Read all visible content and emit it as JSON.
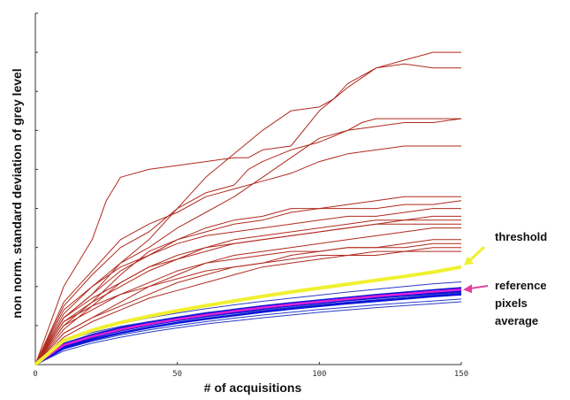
{
  "chart_data": {
    "type": "line",
    "title": "",
    "xlabel": "# of acquisitions",
    "ylabel": "non norm. standard deviation of grey level",
    "xlim": [
      0,
      150
    ],
    "ylim": [
      0,
      9
    ],
    "grid": false,
    "x_ticks": [
      0,
      50,
      100,
      150
    ],
    "x_tick_labels": [
      "0",
      "50",
      "100",
      "150"
    ],
    "y_ticks": [
      0,
      1,
      2,
      3,
      4,
      5,
      6,
      7,
      8,
      9
    ],
    "y_tick_labels": [
      "",
      "",
      "",
      "",
      "",
      "",
      "",
      "",
      "",
      ""
    ],
    "colors": {
      "outlier": "#b02a1e",
      "reference": "#0a14d8",
      "reference_thin": "#2a3cc8",
      "average": "#e020d8",
      "threshold": "#f0f030",
      "threshold_arrow": "#f0f030",
      "average_arrow": "#e040a0"
    },
    "annotations": [
      {
        "text_lines": [
          "threshold"
        ],
        "target_series": "threshold"
      },
      {
        "text_lines": [
          "reference",
          "pixels",
          "average"
        ],
        "target_series": "average"
      }
    ],
    "series": [
      {
        "group": "outlier",
        "x": [
          0,
          10,
          20,
          25,
          30,
          40,
          50,
          60,
          70,
          75,
          80,
          90,
          100,
          110,
          120,
          130,
          140,
          150
        ],
        "y": [
          0,
          2.0,
          3.2,
          4.2,
          4.8,
          5.0,
          5.1,
          5.2,
          5.3,
          5.3,
          5.5,
          5.6,
          6.5,
          7.1,
          7.6,
          7.8,
          8.0,
          8.0
        ]
      },
      {
        "group": "outlier",
        "x": [
          0,
          10,
          20,
          30,
          40,
          50,
          60,
          70,
          80,
          90,
          100,
          105,
          110,
          120,
          130,
          140,
          150
        ],
        "y": [
          0,
          1.2,
          1.8,
          2.6,
          3.2,
          4.0,
          4.8,
          5.4,
          6.0,
          6.5,
          6.6,
          6.8,
          7.2,
          7.6,
          7.7,
          7.6,
          7.6
        ]
      },
      {
        "group": "outlier",
        "x": [
          0,
          10,
          20,
          30,
          40,
          50,
          60,
          70,
          75,
          80,
          90,
          100,
          110,
          115,
          120,
          130,
          140,
          150
        ],
        "y": [
          0,
          1.5,
          2.3,
          3.0,
          3.4,
          4.0,
          4.4,
          4.6,
          5.0,
          5.2,
          5.5,
          5.7,
          6.0,
          6.2,
          6.3,
          6.3,
          6.3,
          6.3
        ]
      },
      {
        "group": "outlier",
        "x": [
          0,
          10,
          20,
          30,
          40,
          50,
          60,
          70,
          80,
          90,
          100,
          110,
          120,
          130,
          140,
          150
        ],
        "y": [
          0,
          1.3,
          2.0,
          2.6,
          3.0,
          3.5,
          3.9,
          4.3,
          4.8,
          5.3,
          5.8,
          6.0,
          6.1,
          6.2,
          6.2,
          6.3
        ]
      },
      {
        "group": "outlier",
        "x": [
          0,
          10,
          20,
          30,
          40,
          50,
          60,
          70,
          80,
          90,
          100,
          110,
          120,
          130,
          140,
          150
        ],
        "y": [
          0,
          1.6,
          2.4,
          3.2,
          3.6,
          3.9,
          4.3,
          4.5,
          4.7,
          4.9,
          5.2,
          5.4,
          5.5,
          5.6,
          5.6,
          5.6
        ]
      },
      {
        "group": "outlier",
        "x": [
          0,
          10,
          20,
          30,
          40,
          50,
          60,
          70,
          80,
          90,
          100,
          110,
          120,
          130,
          140,
          150
        ],
        "y": [
          0,
          1.2,
          1.8,
          2.4,
          2.8,
          3.2,
          3.5,
          3.7,
          3.8,
          4.0,
          4.0,
          4.1,
          4.2,
          4.3,
          4.3,
          4.3
        ]
      },
      {
        "group": "outlier",
        "x": [
          0,
          10,
          20,
          30,
          40,
          50,
          60,
          70,
          80,
          90,
          100,
          110,
          120,
          130,
          140,
          150
        ],
        "y": [
          0,
          1.0,
          1.6,
          2.3,
          2.9,
          3.2,
          3.4,
          3.6,
          3.7,
          3.9,
          4.0,
          4.0,
          4.0,
          4.1,
          4.1,
          4.2
        ]
      },
      {
        "group": "outlier",
        "x": [
          0,
          10,
          20,
          30,
          40,
          50,
          60,
          70,
          80,
          90,
          100,
          110,
          120,
          130,
          140,
          150
        ],
        "y": [
          0,
          1.4,
          2.0,
          2.5,
          2.8,
          3.1,
          3.3,
          3.4,
          3.5,
          3.6,
          3.7,
          3.8,
          3.8,
          3.9,
          4.0,
          4.0
        ]
      },
      {
        "group": "outlier",
        "x": [
          0,
          10,
          20,
          30,
          40,
          50,
          60,
          70,
          80,
          90,
          100,
          110,
          120,
          130,
          140,
          150
        ],
        "y": [
          0,
          1.1,
          1.6,
          2.0,
          2.4,
          2.7,
          3.0,
          3.2,
          3.3,
          3.4,
          3.5,
          3.6,
          3.7,
          3.7,
          3.8,
          3.8
        ]
      },
      {
        "group": "outlier",
        "x": [
          0,
          10,
          20,
          30,
          40,
          50,
          60,
          70,
          80,
          90,
          100,
          110,
          120,
          130,
          140,
          150
        ],
        "y": [
          0,
          0.9,
          1.5,
          2.1,
          2.5,
          2.8,
          3.0,
          3.1,
          3.2,
          3.3,
          3.4,
          3.5,
          3.6,
          3.7,
          3.7,
          3.7
        ]
      },
      {
        "group": "outlier",
        "x": [
          0,
          10,
          20,
          30,
          40,
          50,
          60,
          70,
          80,
          90,
          100,
          110,
          120,
          130,
          140,
          150
        ],
        "y": [
          0,
          1.2,
          1.7,
          2.1,
          2.5,
          2.7,
          2.9,
          3.1,
          3.2,
          3.3,
          3.4,
          3.5,
          3.6,
          3.6,
          3.6,
          3.6
        ]
      },
      {
        "group": "outlier",
        "x": [
          0,
          10,
          20,
          30,
          40,
          50,
          60,
          70,
          80,
          90,
          100,
          110,
          120,
          130,
          140,
          150
        ],
        "y": [
          0,
          0.8,
          1.2,
          1.6,
          2.0,
          2.3,
          2.6,
          2.8,
          2.9,
          3.0,
          3.1,
          3.2,
          3.3,
          3.4,
          3.5,
          3.5
        ]
      },
      {
        "group": "outlier",
        "x": [
          0,
          10,
          20,
          30,
          40,
          50,
          60,
          70,
          80,
          90,
          100,
          110,
          120,
          130,
          140,
          150
        ],
        "y": [
          0,
          1.0,
          1.4,
          1.8,
          2.1,
          2.4,
          2.6,
          2.7,
          2.8,
          2.9,
          2.9,
          3.0,
          3.0,
          3.1,
          3.2,
          3.2
        ]
      },
      {
        "group": "outlier",
        "x": [
          0,
          10,
          20,
          30,
          40,
          50,
          60,
          70,
          80,
          90,
          100,
          110,
          120,
          130,
          140,
          150
        ],
        "y": [
          0,
          0.8,
          1.2,
          1.5,
          1.8,
          2.1,
          2.3,
          2.5,
          2.6,
          2.8,
          2.9,
          3.0,
          3.0,
          3.0,
          3.1,
          3.1
        ]
      },
      {
        "group": "outlier",
        "x": [
          0,
          10,
          20,
          30,
          40,
          50,
          60,
          70,
          80,
          90,
          100,
          110,
          120,
          130,
          140,
          150
        ],
        "y": [
          0,
          0.7,
          1.1,
          1.4,
          1.7,
          1.9,
          2.1,
          2.3,
          2.5,
          2.6,
          2.7,
          2.8,
          2.8,
          2.9,
          2.9,
          2.9
        ]
      },
      {
        "group": "outlier",
        "x": [
          0,
          10,
          20,
          30,
          40,
          50,
          60,
          70,
          80,
          90,
          100,
          110,
          120,
          130,
          140,
          150
        ],
        "y": [
          0,
          1.1,
          1.5,
          1.8,
          2.0,
          2.2,
          2.4,
          2.5,
          2.6,
          2.7,
          2.8,
          2.8,
          2.9,
          2.9,
          3.0,
          3.0
        ]
      },
      {
        "group": "reference_thin",
        "x": [
          0,
          10,
          20,
          30,
          40,
          50,
          60,
          70,
          80,
          90,
          100,
          110,
          120,
          130,
          140,
          150
        ],
        "y": [
          0,
          0.6,
          0.85,
          1.05,
          1.2,
          1.32,
          1.43,
          1.53,
          1.62,
          1.7,
          1.78,
          1.86,
          1.93,
          2.0,
          2.07,
          2.12
        ]
      },
      {
        "group": "reference_thin",
        "x": [
          0,
          10,
          20,
          30,
          40,
          50,
          60,
          70,
          80,
          90,
          100,
          110,
          120,
          130,
          140,
          150
        ],
        "y": [
          0,
          0.55,
          0.78,
          0.96,
          1.1,
          1.22,
          1.33,
          1.42,
          1.51,
          1.59,
          1.66,
          1.73,
          1.8,
          1.86,
          1.92,
          1.98
        ]
      },
      {
        "group": "reference_thin",
        "x": [
          0,
          10,
          20,
          30,
          40,
          50,
          60,
          70,
          80,
          90,
          100,
          110,
          120,
          130,
          140,
          150
        ],
        "y": [
          0,
          0.45,
          0.68,
          0.86,
          1.0,
          1.12,
          1.22,
          1.31,
          1.39,
          1.47,
          1.54,
          1.6,
          1.66,
          1.72,
          1.78,
          1.83
        ]
      },
      {
        "group": "reference_thin",
        "x": [
          0,
          10,
          20,
          30,
          40,
          50,
          60,
          70,
          80,
          90,
          100,
          110,
          120,
          130,
          140,
          150
        ],
        "y": [
          0,
          0.4,
          0.6,
          0.76,
          0.89,
          1.0,
          1.1,
          1.19,
          1.27,
          1.34,
          1.41,
          1.47,
          1.53,
          1.58,
          1.63,
          1.68
        ]
      },
      {
        "group": "reference_thin",
        "x": [
          0,
          10,
          20,
          30,
          40,
          50,
          60,
          70,
          80,
          90,
          100,
          110,
          120,
          130,
          140,
          150
        ],
        "y": [
          0,
          0.62,
          0.82,
          0.98,
          1.1,
          1.2,
          1.29,
          1.37,
          1.45,
          1.52,
          1.58,
          1.64,
          1.7,
          1.75,
          1.8,
          1.85
        ]
      },
      {
        "group": "reference_thin",
        "x": [
          0,
          10,
          20,
          30,
          40,
          50,
          60,
          70,
          80,
          90,
          100,
          110,
          120,
          130,
          140,
          150
        ],
        "y": [
          0,
          0.35,
          0.55,
          0.7,
          0.83,
          0.94,
          1.04,
          1.12,
          1.2,
          1.27,
          1.34,
          1.4,
          1.46,
          1.51,
          1.56,
          1.61
        ]
      },
      {
        "group": "reference",
        "x": [
          0,
          10,
          20,
          30,
          40,
          50,
          60,
          70,
          80,
          90,
          100,
          110,
          120,
          130,
          140,
          150
        ],
        "y": [
          0,
          0.52,
          0.75,
          0.93,
          1.07,
          1.19,
          1.3,
          1.4,
          1.49,
          1.57,
          1.64,
          1.71,
          1.78,
          1.84,
          1.9,
          1.95
        ]
      },
      {
        "group": "reference",
        "x": [
          0,
          10,
          20,
          30,
          40,
          50,
          60,
          70,
          80,
          90,
          100,
          110,
          120,
          130,
          140,
          150
        ],
        "y": [
          0,
          0.46,
          0.7,
          0.88,
          1.02,
          1.14,
          1.25,
          1.34,
          1.43,
          1.51,
          1.58,
          1.65,
          1.71,
          1.77,
          1.83,
          1.88
        ]
      },
      {
        "group": "reference",
        "x": [
          0,
          10,
          20,
          30,
          40,
          50,
          60,
          70,
          80,
          90,
          100,
          110,
          120,
          130,
          140,
          150
        ],
        "y": [
          0,
          0.42,
          0.64,
          0.81,
          0.95,
          1.07,
          1.17,
          1.26,
          1.35,
          1.43,
          1.5,
          1.57,
          1.63,
          1.69,
          1.75,
          1.8
        ]
      },
      {
        "group": "average",
        "x": [
          0,
          10,
          20,
          30,
          40,
          50,
          60,
          70,
          80,
          90,
          100,
          110,
          120,
          130,
          140,
          150
        ],
        "y": [
          0,
          0.5,
          0.72,
          0.9,
          1.04,
          1.16,
          1.27,
          1.37,
          1.46,
          1.54,
          1.61,
          1.68,
          1.75,
          1.81,
          1.87,
          1.92
        ]
      },
      {
        "group": "threshold",
        "x": [
          0,
          10,
          20,
          30,
          40,
          50,
          60,
          70,
          80,
          90,
          100,
          110,
          120,
          130,
          140,
          150
        ],
        "y": [
          0,
          0.62,
          0.88,
          1.08,
          1.24,
          1.38,
          1.51,
          1.63,
          1.75,
          1.86,
          1.96,
          2.06,
          2.16,
          2.26,
          2.37,
          2.5
        ]
      }
    ]
  }
}
